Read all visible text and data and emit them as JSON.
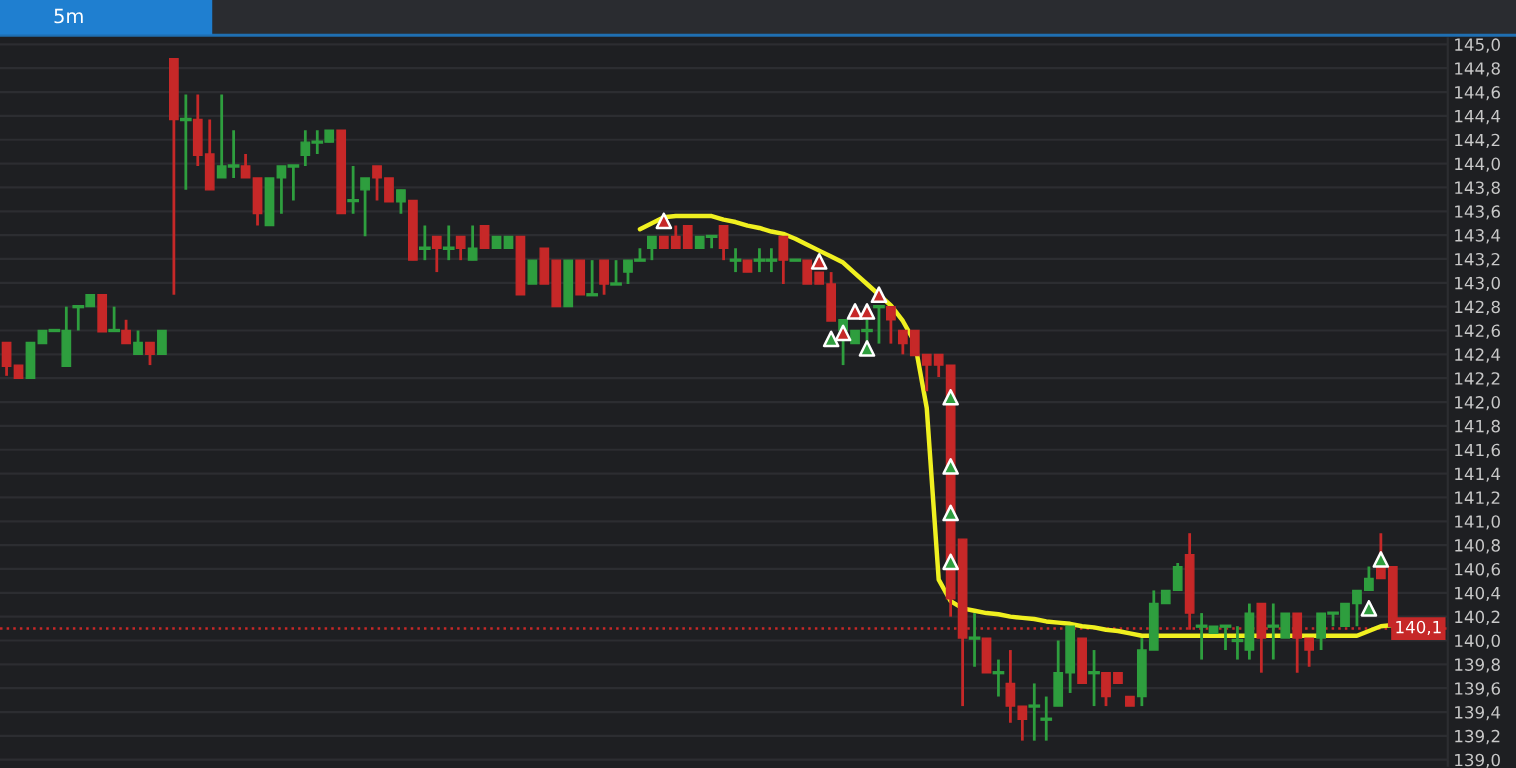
{
  "chart_data": {
    "type": "candlestick",
    "title": "5m",
    "categories": [
      null,
      null,
      null,
      null,
      null,
      null,
      null,
      null,
      null,
      null,
      null,
      null,
      null,
      null,
      null,
      null,
      null,
      null,
      null,
      null,
      null,
      null,
      null,
      null,
      null,
      null,
      null,
      null,
      null,
      null,
      null,
      null,
      null,
      null,
      null,
      null,
      null,
      null,
      null,
      null,
      null,
      null,
      null,
      null,
      null,
      null,
      null,
      null,
      null,
      null,
      null,
      null,
      null,
      null,
      null,
      null,
      null,
      null,
      null,
      null,
      null,
      null,
      null,
      null,
      null,
      null,
      null,
      null,
      null,
      null,
      null,
      null,
      null,
      null,
      null,
      null,
      null,
      null,
      null,
      null,
      null,
      null,
      null,
      null,
      null,
      null,
      null,
      null,
      null,
      null,
      null,
      null,
      null,
      null,
      null,
      null,
      null,
      null,
      null,
      null,
      null,
      null,
      null,
      null,
      null,
      null,
      null,
      null,
      null,
      null,
      null,
      null,
      null,
      null,
      null,
      null,
      null
    ],
    "ohlc": [
      [
        142.5,
        142.5,
        142.22,
        142.3
      ],
      [
        142.31,
        142.31,
        142.2,
        142.2
      ],
      [
        142.2,
        142.5,
        142.2,
        142.5
      ],
      [
        142.49,
        142.6,
        142.49,
        142.6
      ],
      [
        142.6,
        142.6,
        142.6,
        142.6
      ],
      [
        142.3,
        142.8,
        142.3,
        142.6
      ],
      [
        142.8,
        142.8,
        142.6,
        142.8
      ],
      [
        142.8,
        142.9,
        142.8,
        142.9
      ],
      [
        142.9,
        142.9,
        142.59,
        142.59
      ],
      [
        142.6,
        142.8,
        142.6,
        142.6
      ],
      [
        142.6,
        142.69,
        142.49,
        142.49
      ],
      [
        142.4,
        142.6,
        142.4,
        142.5
      ],
      [
        142.5,
        142.5,
        142.31,
        142.4
      ],
      [
        142.4,
        142.6,
        142.4,
        142.6
      ],
      [
        144.88,
        144.88,
        142.9,
        144.37
      ],
      [
        144.37,
        144.58,
        143.78,
        144.37
      ],
      [
        144.37,
        144.58,
        143.98,
        144.07
      ],
      [
        144.08,
        144.37,
        143.78,
        143.78
      ],
      [
        143.88,
        144.58,
        143.88,
        143.98
      ],
      [
        143.98,
        144.28,
        143.88,
        143.98
      ],
      [
        143.98,
        144.08,
        143.88,
        143.88
      ],
      [
        143.88,
        143.88,
        143.48,
        143.58
      ],
      [
        143.48,
        143.88,
        143.48,
        143.88
      ],
      [
        143.88,
        143.98,
        143.58,
        143.98
      ],
      [
        143.98,
        143.98,
        143.69,
        143.98
      ],
      [
        144.07,
        144.28,
        143.98,
        144.18
      ],
      [
        144.18,
        144.28,
        144.08,
        144.18
      ],
      [
        144.18,
        144.28,
        144.18,
        144.28
      ],
      [
        144.28,
        144.28,
        143.58,
        143.58
      ],
      [
        143.69,
        143.98,
        143.58,
        143.69
      ],
      [
        143.78,
        143.88,
        143.39,
        143.88
      ],
      [
        143.98,
        143.98,
        143.69,
        143.88
      ],
      [
        143.88,
        143.88,
        143.68,
        143.68
      ],
      [
        143.68,
        143.78,
        143.58,
        143.78
      ],
      [
        143.69,
        143.69,
        143.19,
        143.19
      ],
      [
        143.29,
        143.48,
        143.19,
        143.29
      ],
      [
        143.39,
        143.39,
        143.09,
        143.29
      ],
      [
        143.29,
        143.48,
        143.19,
        143.29
      ],
      [
        143.39,
        143.39,
        143.19,
        143.29
      ],
      [
        143.19,
        143.48,
        143.19,
        143.29
      ],
      [
        143.48,
        143.48,
        143.29,
        143.29
      ],
      [
        143.29,
        143.39,
        143.29,
        143.39
      ],
      [
        143.29,
        143.39,
        143.29,
        143.39
      ],
      [
        143.39,
        143.39,
        142.9,
        142.9
      ],
      [
        142.99,
        143.19,
        142.99,
        143.19
      ],
      [
        143.29,
        143.29,
        142.99,
        142.99
      ],
      [
        143.19,
        143.19,
        142.8,
        142.8
      ],
      [
        142.8,
        143.19,
        142.8,
        143.19
      ],
      [
        143.19,
        143.19,
        142.9,
        142.9
      ],
      [
        142.9,
        143.19,
        142.9,
        142.9
      ],
      [
        143.19,
        143.19,
        142.9,
        142.99
      ],
      [
        142.99,
        143.19,
        142.99,
        142.99
      ],
      [
        143.09,
        143.19,
        142.99,
        143.19
      ],
      [
        143.19,
        143.29,
        143.19,
        143.19
      ],
      [
        143.29,
        143.39,
        143.19,
        143.39
      ],
      [
        143.39,
        143.39,
        143.29,
        143.29
      ],
      [
        143.39,
        143.48,
        143.29,
        143.29
      ],
      [
        143.48,
        143.48,
        143.29,
        143.29
      ],
      [
        143.29,
        143.39,
        143.29,
        143.39
      ],
      [
        143.39,
        143.39,
        143.29,
        143.39
      ],
      [
        143.48,
        143.48,
        143.19,
        143.29
      ],
      [
        143.19,
        143.29,
        143.09,
        143.19
      ],
      [
        143.19,
        143.19,
        143.09,
        143.09
      ],
      [
        143.19,
        143.29,
        143.09,
        143.19
      ],
      [
        143.19,
        143.29,
        143.09,
        143.19
      ],
      [
        143.39,
        143.39,
        142.99,
        143.19
      ],
      [
        143.19,
        143.19,
        143.19,
        143.19
      ],
      [
        143.19,
        143.19,
        142.99,
        142.99
      ],
      [
        143.09,
        143.09,
        142.99,
        142.99
      ],
      [
        142.99,
        143.09,
        142.68,
        142.68
      ],
      [
        142.6,
        142.69,
        142.31,
        142.69
      ],
      [
        142.49,
        142.6,
        142.49,
        142.6
      ],
      [
        142.6,
        142.69,
        142.49,
        142.6
      ],
      [
        142.8,
        142.8,
        142.49,
        142.8
      ],
      [
        142.8,
        142.8,
        142.49,
        142.69
      ],
      [
        142.6,
        142.6,
        142.4,
        142.49
      ],
      [
        142.6,
        142.6,
        142.39,
        142.39
      ],
      [
        142.4,
        142.4,
        142.09,
        142.31
      ],
      [
        142.4,
        142.4,
        142.21,
        142.31
      ],
      [
        142.31,
        142.31,
        140.2,
        140.35
      ],
      [
        140.85,
        140.85,
        139.45,
        140.02
      ],
      [
        140.02,
        140.23,
        139.78,
        140.02
      ],
      [
        140.02,
        140.02,
        139.73,
        139.73
      ],
      [
        139.73,
        139.84,
        139.53,
        139.73
      ],
      [
        139.64,
        139.92,
        139.31,
        139.45
      ],
      [
        139.45,
        139.45,
        139.16,
        139.34
      ],
      [
        139.45,
        139.64,
        139.16,
        139.45
      ],
      [
        139.34,
        139.53,
        139.16,
        139.34
      ],
      [
        139.45,
        140.0,
        139.45,
        139.73
      ],
      [
        139.73,
        140.12,
        139.56,
        140.12
      ],
      [
        140.02,
        140.02,
        139.64,
        139.64
      ],
      [
        139.73,
        139.92,
        139.45,
        139.73
      ],
      [
        139.73,
        139.73,
        139.45,
        139.53
      ],
      [
        139.73,
        139.73,
        139.64,
        139.64
      ],
      [
        139.53,
        139.53,
        139.45,
        139.45
      ],
      [
        139.53,
        140.02,
        139.45,
        139.92
      ],
      [
        139.92,
        140.42,
        139.92,
        140.31
      ],
      [
        140.31,
        140.42,
        140.31,
        140.42
      ],
      [
        140.42,
        140.65,
        140.42,
        140.62
      ],
      [
        140.72,
        140.9,
        140.09,
        140.23
      ],
      [
        140.12,
        140.23,
        139.84,
        140.12
      ],
      [
        140.06,
        140.12,
        140.06,
        140.12
      ],
      [
        140.12,
        140.12,
        139.92,
        140.12
      ],
      [
        140.0,
        140.12,
        139.84,
        140.0
      ],
      [
        139.92,
        140.31,
        139.84,
        140.23
      ],
      [
        140.31,
        140.31,
        139.73,
        140.02
      ],
      [
        140.12,
        140.31,
        139.84,
        140.12
      ],
      [
        140.02,
        140.23,
        140.02,
        140.23
      ],
      [
        140.23,
        140.23,
        139.73,
        140.02
      ],
      [
        140.02,
        140.02,
        139.78,
        139.92
      ],
      [
        140.02,
        140.23,
        139.92,
        140.23
      ],
      [
        140.23,
        140.23,
        140.12,
        140.23
      ],
      [
        140.12,
        140.31,
        140.12,
        140.31
      ],
      [
        140.31,
        140.42,
        140.12,
        140.42
      ],
      [
        140.42,
        140.62,
        140.42,
        140.52
      ],
      [
        140.62,
        140.9,
        140.52,
        140.52
      ],
      [
        140.62,
        140.62,
        140.12,
        140.12
      ]
    ],
    "series": [
      {
        "type": "line",
        "color": "#f0f020",
        "line_style": "solid",
        "values": [
          null,
          null,
          null,
          null,
          null,
          null,
          null,
          null,
          null,
          null,
          null,
          null,
          null,
          null,
          null,
          null,
          null,
          null,
          null,
          null,
          null,
          null,
          null,
          null,
          null,
          null,
          null,
          null,
          null,
          null,
          null,
          null,
          null,
          null,
          null,
          null,
          null,
          null,
          null,
          null,
          null,
          null,
          null,
          null,
          null,
          null,
          null,
          null,
          null,
          null,
          null,
          null,
          null,
          143.45,
          143.5,
          143.55,
          143.56,
          143.56,
          143.56,
          143.56,
          143.53,
          143.51,
          143.48,
          143.46,
          143.43,
          143.41,
          143.37,
          143.32,
          143.27,
          143.22,
          143.17,
          143.08,
          142.99,
          142.9,
          142.81,
          142.68,
          142.5,
          141.95,
          140.51,
          140.33,
          140.27,
          140.25,
          140.23,
          140.22,
          140.2,
          140.19,
          140.18,
          140.16,
          140.15,
          140.14,
          140.12,
          140.11,
          140.09,
          140.08,
          140.06,
          140.04,
          140.04,
          140.04,
          140.04,
          140.04,
          140.04,
          140.04,
          140.04,
          140.04,
          140.04,
          140.04,
          140.04,
          140.04,
          140.04,
          140.04,
          140.04,
          140.04,
          140.04,
          140.04,
          140.08,
          140.12,
          140.13
        ]
      },
      {
        "type": "scatter",
        "color": "#c62828",
        "marker": "triangle",
        "values": [
          null,
          null,
          null,
          null,
          null,
          null,
          null,
          null,
          null,
          null,
          null,
          null,
          null,
          null,
          null,
          null,
          null,
          null,
          null,
          null,
          null,
          null,
          null,
          null,
          null,
          null,
          null,
          null,
          null,
          null,
          null,
          null,
          null,
          null,
          null,
          null,
          null,
          null,
          null,
          null,
          null,
          null,
          null,
          null,
          null,
          null,
          null,
          null,
          null,
          null,
          null,
          null,
          null,
          null,
          null,
          143.52,
          null,
          null,
          null,
          null,
          null,
          null,
          null,
          null,
          null,
          null,
          null,
          null,
          143.18,
          null,
          142.58,
          142.76,
          142.76,
          142.9,
          null,
          null,
          null,
          null,
          null,
          null,
          null,
          null,
          null,
          null,
          null,
          null,
          null,
          null,
          null,
          null,
          null,
          null,
          null,
          null,
          null,
          null,
          null,
          null,
          null,
          null,
          null,
          null,
          null,
          null,
          null,
          null,
          null,
          null,
          null,
          null,
          null,
          null,
          null,
          null,
          null,
          null,
          null
        ]
      },
      {
        "type": "scatter",
        "color": "#2e9e3e",
        "marker": "triangle",
        "values": [
          null,
          null,
          null,
          null,
          null,
          null,
          null,
          null,
          null,
          null,
          null,
          null,
          null,
          null,
          null,
          null,
          null,
          null,
          null,
          null,
          null,
          null,
          null,
          null,
          null,
          null,
          null,
          null,
          null,
          null,
          null,
          null,
          null,
          null,
          null,
          null,
          null,
          null,
          null,
          null,
          null,
          null,
          null,
          null,
          null,
          null,
          null,
          null,
          null,
          null,
          null,
          null,
          null,
          null,
          null,
          null,
          null,
          null,
          null,
          null,
          null,
          null,
          null,
          null,
          null,
          null,
          null,
          null,
          null,
          142.53,
          null,
          null,
          142.45,
          null,
          null,
          null,
          null,
          null,
          null,
          142.04,
          null,
          null,
          null,
          null,
          null,
          null,
          null,
          null,
          null,
          null,
          null,
          null,
          null,
          null,
          null,
          null,
          null,
          null,
          null,
          null,
          null,
          null,
          null,
          null,
          null,
          null,
          null,
          null,
          null,
          null,
          null,
          null,
          null,
          null,
          140.27,
          140.68,
          null
        ]
      },
      {
        "type": "scatter",
        "color": "#2e9e3e",
        "marker": "triangle",
        "values": [
          null,
          null,
          null,
          null,
          null,
          null,
          null,
          null,
          null,
          null,
          null,
          null,
          null,
          null,
          null,
          null,
          null,
          null,
          null,
          null,
          null,
          null,
          null,
          null,
          null,
          null,
          null,
          null,
          null,
          null,
          null,
          null,
          null,
          null,
          null,
          null,
          null,
          null,
          null,
          null,
          null,
          null,
          null,
          null,
          null,
          null,
          null,
          null,
          null,
          null,
          null,
          null,
          null,
          null,
          null,
          null,
          null,
          null,
          null,
          null,
          null,
          null,
          null,
          null,
          null,
          null,
          null,
          null,
          null,
          null,
          null,
          null,
          null,
          null,
          null,
          null,
          null,
          null,
          null,
          141.46,
          null,
          null,
          null,
          null,
          null,
          null,
          null,
          null,
          null,
          null,
          null,
          null,
          null,
          null,
          null,
          null,
          null,
          null,
          null,
          null,
          null,
          null,
          null,
          null,
          null,
          null,
          null,
          null,
          null,
          null,
          null,
          null,
          null,
          null,
          null,
          null,
          null
        ]
      },
      {
        "type": "scatter",
        "color": "#2e9e3e",
        "marker": "triangle",
        "values": [
          null,
          null,
          null,
          null,
          null,
          null,
          null,
          null,
          null,
          null,
          null,
          null,
          null,
          null,
          null,
          null,
          null,
          null,
          null,
          null,
          null,
          null,
          null,
          null,
          null,
          null,
          null,
          null,
          null,
          null,
          null,
          null,
          null,
          null,
          null,
          null,
          null,
          null,
          null,
          null,
          null,
          null,
          null,
          null,
          null,
          null,
          null,
          null,
          null,
          null,
          null,
          null,
          null,
          null,
          null,
          null,
          null,
          null,
          null,
          null,
          null,
          null,
          null,
          null,
          null,
          null,
          null,
          null,
          null,
          null,
          null,
          null,
          null,
          null,
          null,
          null,
          null,
          null,
          null,
          141.07,
          null,
          null,
          null,
          null,
          null,
          null,
          null,
          null,
          null,
          null,
          null,
          null,
          null,
          null,
          null,
          null,
          null,
          null,
          null,
          null,
          null,
          null,
          null,
          null,
          null,
          null,
          null,
          null,
          null,
          null,
          null,
          null,
          null,
          null,
          null,
          null,
          null
        ]
      },
      {
        "type": "scatter",
        "color": "#2e9e3e",
        "marker": "triangle",
        "values": [
          null,
          null,
          null,
          null,
          null,
          null,
          null,
          null,
          null,
          null,
          null,
          null,
          null,
          null,
          null,
          null,
          null,
          null,
          null,
          null,
          null,
          null,
          null,
          null,
          null,
          null,
          null,
          null,
          null,
          null,
          null,
          null,
          null,
          null,
          null,
          null,
          null,
          null,
          null,
          null,
          null,
          null,
          null,
          null,
          null,
          null,
          null,
          null,
          null,
          null,
          null,
          null,
          null,
          null,
          null,
          null,
          null,
          null,
          null,
          null,
          null,
          null,
          null,
          null,
          null,
          null,
          null,
          null,
          null,
          null,
          null,
          null,
          null,
          null,
          null,
          null,
          null,
          null,
          null,
          140.66,
          null,
          null,
          null,
          null,
          null,
          null,
          null,
          null,
          null,
          null,
          null,
          null,
          null,
          null,
          null,
          null,
          null,
          null,
          null,
          null,
          null,
          null,
          null,
          null,
          null,
          null,
          null,
          null,
          null,
          null,
          null,
          null,
          null,
          null,
          null,
          null,
          null
        ]
      }
    ],
    "ylim": [
      138.95,
      145.05
    ],
    "yticks": [
      {
        "value": 139.0,
        "label": "139,0"
      },
      {
        "value": 139.2,
        "label": "139,2"
      },
      {
        "value": 139.4,
        "label": "139,4"
      },
      {
        "value": 139.6,
        "label": "139,6"
      },
      {
        "value": 139.8,
        "label": "139,8"
      },
      {
        "value": 140.0,
        "label": "140,0"
      },
      {
        "value": 140.2,
        "label": "140,2"
      },
      {
        "value": 140.4,
        "label": "140,4"
      },
      {
        "value": 140.6,
        "label": "140,6"
      },
      {
        "value": 140.8,
        "label": "140,8"
      },
      {
        "value": 141.0,
        "label": "141,0"
      },
      {
        "value": 141.2,
        "label": "141,2"
      },
      {
        "value": 141.4,
        "label": "141,4"
      },
      {
        "value": 141.6,
        "label": "141,6"
      },
      {
        "value": 141.8,
        "label": "141,8"
      },
      {
        "value": 142.0,
        "label": "142,0"
      },
      {
        "value": 142.2,
        "label": "142,2"
      },
      {
        "value": 142.4,
        "label": "142,4"
      },
      {
        "value": 142.6,
        "label": "142,6"
      },
      {
        "value": 142.8,
        "label": "142,8"
      },
      {
        "value": 143.0,
        "label": "143,0"
      },
      {
        "value": 143.2,
        "label": "143,2"
      },
      {
        "value": 143.4,
        "label": "143,4"
      },
      {
        "value": 143.6,
        "label": "143,6"
      },
      {
        "value": 143.8,
        "label": "143,8"
      },
      {
        "value": 144.0,
        "label": "144,0"
      },
      {
        "value": 144.2,
        "label": "144,2"
      },
      {
        "value": 144.4,
        "label": "144,4"
      },
      {
        "value": 144.6,
        "label": "144,6"
      },
      {
        "value": 144.8,
        "label": "144,8"
      },
      {
        "value": 145.0,
        "label": "145,0"
      }
    ],
    "ref_lines": [
      {
        "axis": "y",
        "value": 140.1,
        "label": "140,1",
        "color": "#c62828",
        "line_style": "dotted"
      }
    ],
    "colors": [
      "#c62828",
      "#c62828",
      "#2e9e3e",
      "#2e9e3e",
      "#2e9e3e",
      "#2e9e3e",
      "#2e9e3e",
      "#2e9e3e",
      "#c62828",
      "#2e9e3e",
      "#c62828",
      "#2e9e3e",
      "#c62828",
      "#2e9e3e",
      "#c62828",
      "#2e9e3e",
      "#c62828",
      "#c62828",
      "#2e9e3e",
      "#2e9e3e",
      "#c62828",
      "#c62828",
      "#2e9e3e",
      "#2e9e3e",
      "#2e9e3e",
      "#2e9e3e",
      "#2e9e3e",
      "#2e9e3e",
      "#c62828",
      "#2e9e3e",
      "#2e9e3e",
      "#c62828",
      "#c62828",
      "#2e9e3e",
      "#c62828",
      "#2e9e3e",
      "#c62828",
      "#2e9e3e",
      "#c62828",
      "#2e9e3e",
      "#c62828",
      "#2e9e3e",
      "#2e9e3e",
      "#c62828",
      "#2e9e3e",
      "#c62828",
      "#c62828",
      "#2e9e3e",
      "#c62828",
      "#2e9e3e",
      "#c62828",
      "#2e9e3e",
      "#2e9e3e",
      "#2e9e3e",
      "#2e9e3e",
      "#c62828",
      "#c62828",
      "#c62828",
      "#2e9e3e",
      "#2e9e3e",
      "#c62828",
      "#2e9e3e",
      "#c62828",
      "#2e9e3e",
      "#2e9e3e",
      "#c62828",
      "#2e9e3e",
      "#c62828",
      "#c62828",
      "#c62828",
      "#2e9e3e",
      "#2e9e3e",
      "#2e9e3e",
      "#2e9e3e",
      "#c62828",
      "#c62828",
      "#c62828",
      "#c62828",
      "#c62828",
      "#c62828",
      "#c62828",
      "#2e9e3e",
      "#c62828",
      "#2e9e3e",
      "#c62828",
      "#c62828",
      "#2e9e3e",
      "#2e9e3e",
      "#2e9e3e",
      "#2e9e3e",
      "#c62828",
      "#2e9e3e",
      "#c62828",
      "#c62828",
      "#c62828",
      "#2e9e3e",
      "#2e9e3e",
      "#2e9e3e",
      "#2e9e3e",
      "#c62828",
      "#2e9e3e",
      "#2e9e3e",
      "#2e9e3e",
      "#2e9e3e",
      "#2e9e3e",
      "#c62828",
      "#2e9e3e",
      "#2e9e3e",
      "#c62828",
      "#c62828",
      "#2e9e3e",
      "#2e9e3e",
      "#2e9e3e",
      "#2e9e3e",
      "#2e9e3e",
      "#c62828",
      "#c62828"
    ],
    "grid": "y",
    "tick_labels": "y"
  }
}
